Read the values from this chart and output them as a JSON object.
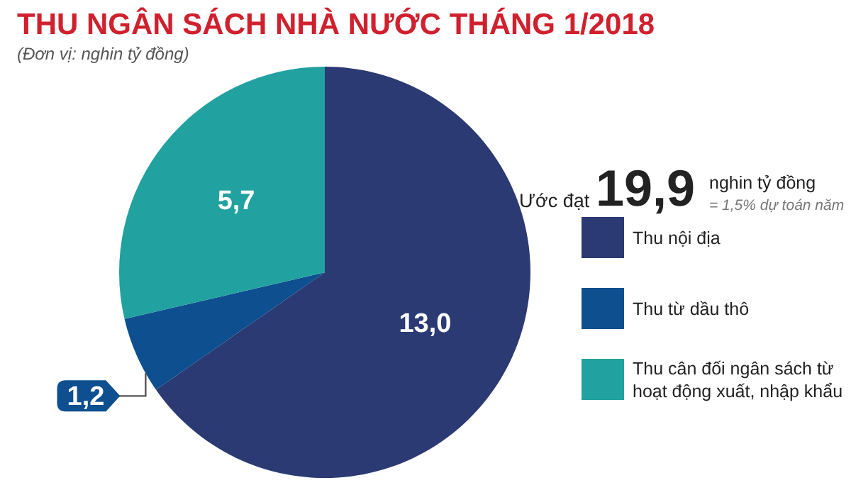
{
  "chart_data": {
    "type": "pie",
    "title": "THU NGÂN SÁCH NHÀ NƯỚC THÁNG 1/2018",
    "subtitle": "(Đơn vị: nghin tỷ đồng)",
    "categories": [
      "Thu nội địa",
      "Thu từ dầu thô",
      "Thu cân đối ngân sách từ hoạt động xuất, nhập khẩu"
    ],
    "values": [
      13.0,
      1.2,
      5.7
    ],
    "colors": [
      "#2b3a73",
      "#0d4f8f",
      "#21a19f"
    ],
    "value_labels": [
      "13,0",
      "1,2",
      "5,7"
    ],
    "legend": "right",
    "annotations": [
      "Ước đạt",
      "19,9",
      "nghin tỷ đồng",
      "= 1,5% dự toán năm"
    ]
  }
}
